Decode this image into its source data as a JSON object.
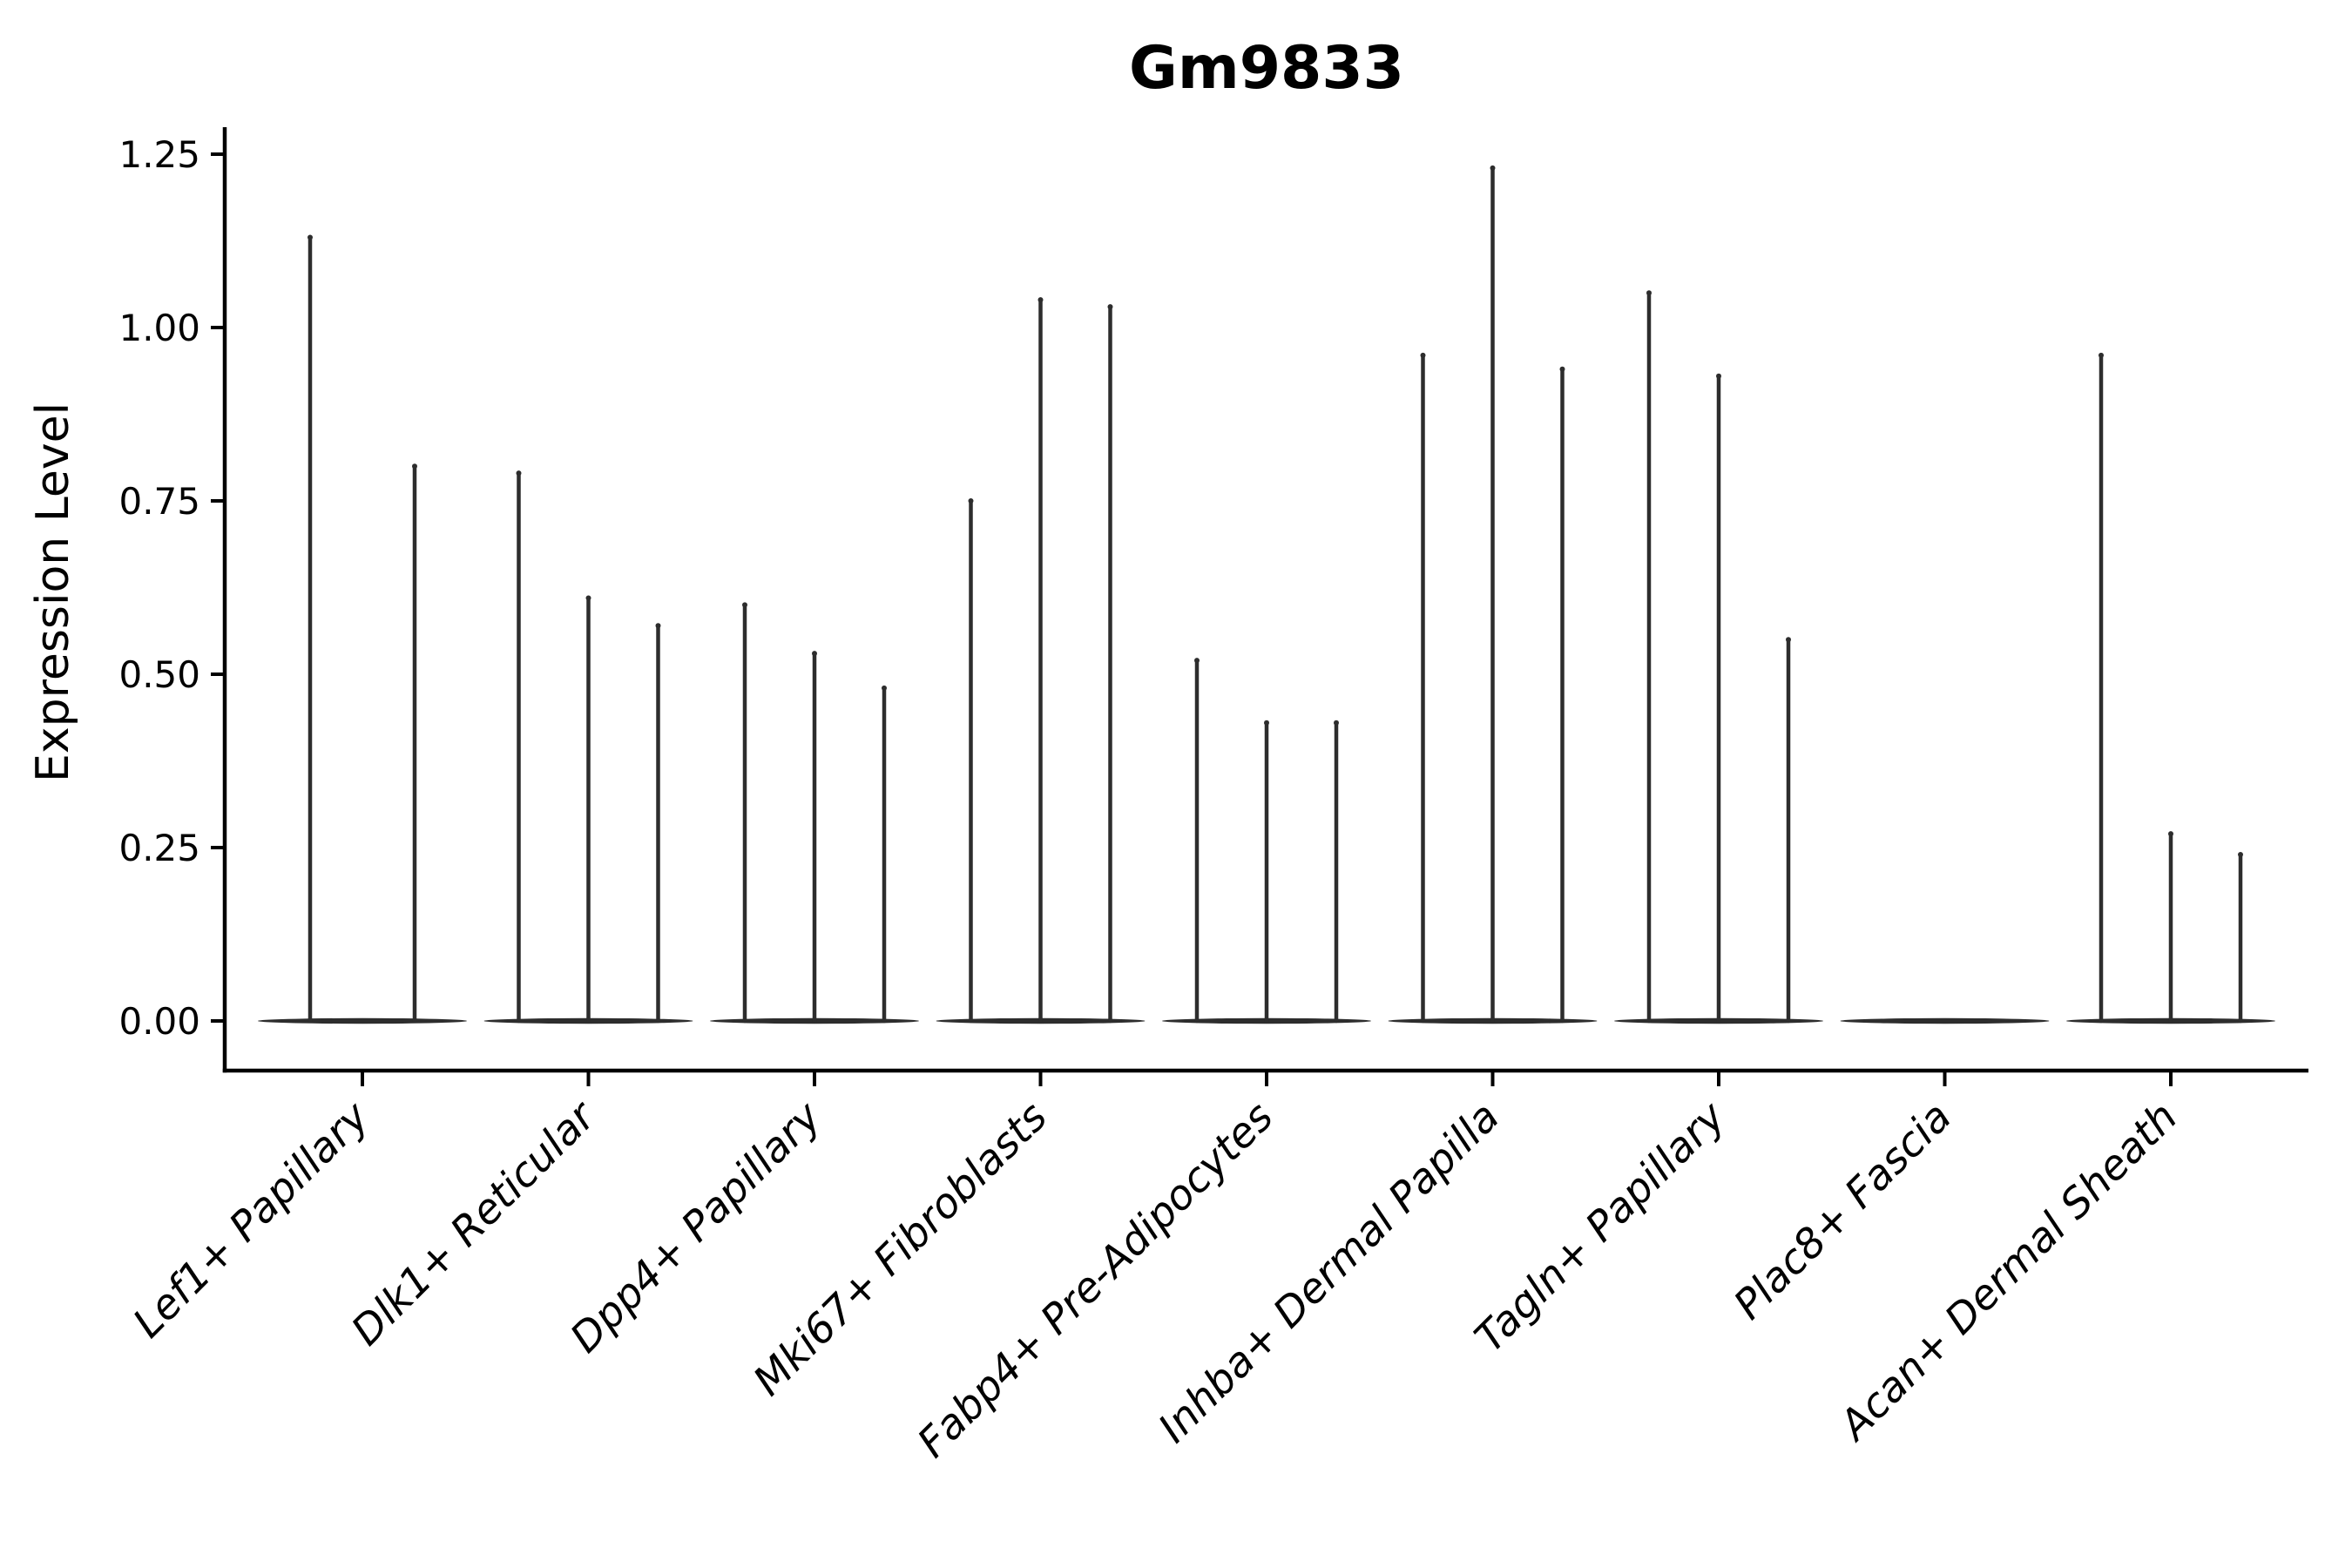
{
  "chart_data": {
    "type": "violin",
    "title": "Gm9833",
    "ylabel": "Expression Level",
    "xlabel": "",
    "categories": [
      "Lef1+ Papillary",
      "Dlk1+ Reticular",
      "Dpp4+ Papillary",
      "Mki67+ Fibroblasts",
      "Fabp4+ Pre-Adipocytes",
      "Inhba+ Dermal Papilla",
      "Tagln+ Papillary",
      "Plac8+ Fascia",
      "Acan+ Dermal Sheath"
    ],
    "series": [
      {
        "name": "Lef1+ Papillary",
        "violin_peak_values": [
          1.13,
          0.8
        ]
      },
      {
        "name": "Dlk1+ Reticular",
        "violin_peak_values": [
          0.79,
          0.61,
          0.57
        ]
      },
      {
        "name": "Dpp4+ Papillary",
        "violin_peak_values": [
          0.6,
          0.53,
          0.48
        ]
      },
      {
        "name": "Mki67+ Fibroblasts",
        "violin_peak_values": [
          0.75,
          1.04,
          1.03
        ]
      },
      {
        "name": "Fabp4+ Pre-Adipocytes",
        "violin_peak_values": [
          0.52,
          0.43,
          0.43
        ]
      },
      {
        "name": "Inhba+ Dermal Papilla",
        "violin_peak_values": [
          0.96,
          1.23,
          0.94
        ]
      },
      {
        "name": "Tagln+ Papillary",
        "violin_peak_values": [
          1.05,
          0.93,
          0.55
        ]
      },
      {
        "name": "Plac8+ Fascia",
        "violin_peak_values": []
      },
      {
        "name": "Acan+ Dermal Sheath",
        "violin_peak_values": [
          0.96,
          0.27,
          0.24
        ]
      }
    ],
    "ytick_labels": [
      "0.00",
      "0.25",
      "0.50",
      "0.75",
      "1.00",
      "1.25"
    ],
    "ytick_values": [
      0,
      0.25,
      0.5,
      0.75,
      1.0,
      1.25
    ],
    "ylim": [
      -0.07,
      1.29
    ],
    "grid": false,
    "legend": null,
    "colors": {
      "violin": "#2d2d2d",
      "axes": "#000000",
      "text": "#000000",
      "background": "#ffffff"
    }
  }
}
